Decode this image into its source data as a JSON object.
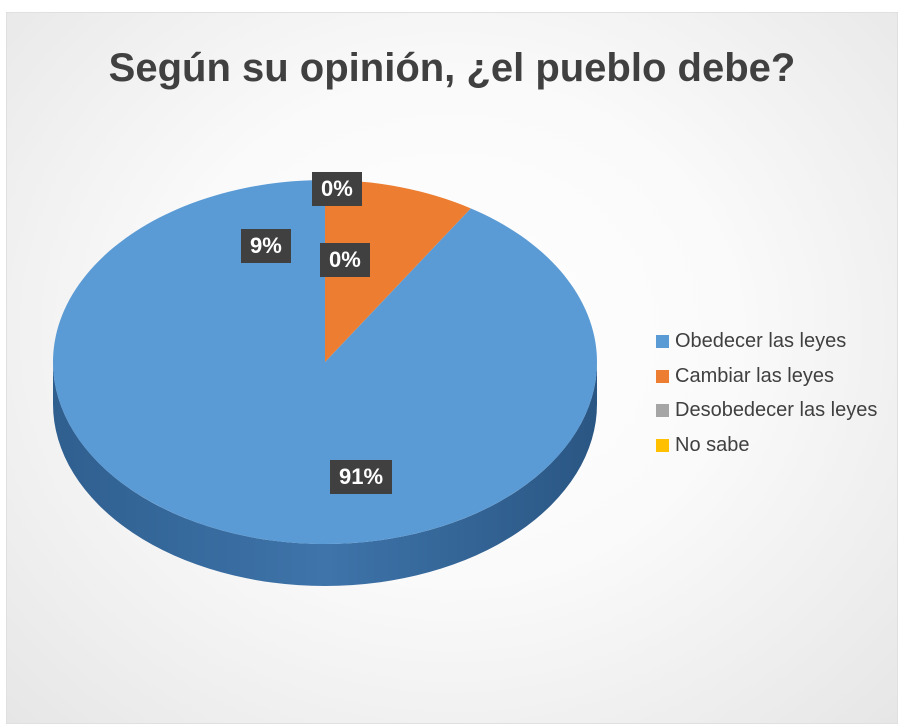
{
  "chart_data": {
    "type": "pie",
    "style": "3d",
    "title": "Según su opinión, ¿el pueblo debe?",
    "legend_position": "right",
    "slices": [
      {
        "label": "Obedecer las leyes",
        "value": 91,
        "display": "91%",
        "color": "#5b9bd5"
      },
      {
        "label": "Cambiar las leyes",
        "value": 9,
        "display": "9%",
        "color": "#ed7d31"
      },
      {
        "label": "Desobedecer las leyes",
        "value": 0,
        "display": "0%",
        "color": "#a5a5a5"
      },
      {
        "label": "No sabe",
        "value": 0,
        "display": "0%",
        "color": "#ffc000"
      }
    ]
  }
}
